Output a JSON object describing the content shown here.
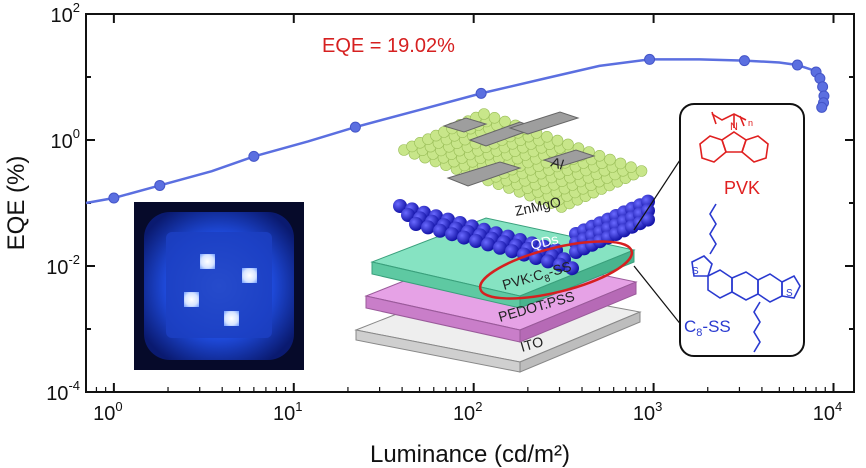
{
  "chart_data": {
    "type": "line",
    "xlabel": "Luminance (cd/m²)",
    "ylabel": "EQE (%)",
    "xscale": "log",
    "yscale": "log",
    "xlim": [
      0.7,
      13000
    ],
    "ylim": [
      0.0001,
      100
    ],
    "x_ticks": [
      {
        "value": 1,
        "base": "10",
        "exp": "0"
      },
      {
        "value": 10,
        "base": "10",
        "exp": "1"
      },
      {
        "value": 100,
        "base": "10",
        "exp": "2"
      },
      {
        "value": 1000,
        "base": "10",
        "exp": "3"
      },
      {
        "value": 10000,
        "base": "10",
        "exp": "4"
      }
    ],
    "y_ticks": [
      {
        "value": 0.0001,
        "base": "10",
        "exp": "-4"
      },
      {
        "value": 0.01,
        "base": "10",
        "exp": "-2"
      },
      {
        "value": 1,
        "base": "10",
        "exp": "0"
      },
      {
        "value": 100,
        "base": "10",
        "exp": "2"
      }
    ],
    "annotation": "EQE = 19.02%",
    "series": [
      {
        "name": "EQE",
        "color": "#5b6fe0",
        "points": [
          [
            0.7,
            0.1
          ],
          [
            1.0,
            0.12
          ],
          [
            1.8,
            0.19
          ],
          [
            3.5,
            0.32
          ],
          [
            6,
            0.55
          ],
          [
            12,
            0.95
          ],
          [
            22,
            1.6
          ],
          [
            50,
            3.0
          ],
          [
            110,
            5.5
          ],
          [
            250,
            9.5
          ],
          [
            500,
            15
          ],
          [
            950,
            19.02
          ],
          [
            1800,
            19.0
          ],
          [
            3200,
            18.2
          ],
          [
            5000,
            17.0
          ],
          [
            6300,
            15.5
          ],
          [
            7600,
            13.0
          ],
          [
            8200,
            10.5
          ],
          [
            8600,
            8.0
          ],
          [
            8800,
            6.0
          ],
          [
            8900,
            4.5
          ],
          [
            8800,
            3.8
          ],
          [
            8600,
            3.3
          ]
        ],
        "markers": [
          [
            1.0,
            0.12
          ],
          [
            1.8,
            0.19
          ],
          [
            6,
            0.55
          ],
          [
            22,
            1.6
          ],
          [
            110,
            5.5
          ],
          [
            950,
            19.02
          ],
          [
            3200,
            18.2
          ],
          [
            6300,
            15.5
          ],
          [
            8000,
            12
          ],
          [
            8400,
            9.5
          ],
          [
            8700,
            7.0
          ],
          [
            8850,
            5.0
          ],
          [
            8800,
            3.9
          ],
          [
            8600,
            3.3
          ]
        ]
      }
    ]
  },
  "inset_device": {
    "layers": [
      "Al",
      "ZnMgO",
      "QDs",
      "PVK:C8-SS",
      "PEDOT:PSS",
      "ITO"
    ],
    "layer_labels": {
      "al": "Al",
      "znmgo": "ZnMgO",
      "qds": "QDs",
      "pvk_base": "PVK:C",
      "pvk_sub": "8",
      "pvk_tail": "-SS",
      "pedot": "PEDOT:PSS",
      "ito": "ITO"
    },
    "colors": {
      "znmgo": "#c8e68a",
      "qds": "#2020c8",
      "pvk": "#6fd6b0",
      "pedot": "#d88cd8",
      "ito": "#e4e4e4",
      "al": "#9e9e9e",
      "highlight": "#d62020"
    }
  },
  "inset_molecules": {
    "pvk_label": "PVK",
    "pvk_color": "#e02020",
    "c8ss_base": "C",
    "c8ss_sub": "8",
    "c8ss_tail": "-SS",
    "c8ss_color": "#2a3ad0",
    "subscript_n": "n"
  },
  "inset_photo": {
    "glow_color": "#2f6bff",
    "background": "#060a2a"
  }
}
